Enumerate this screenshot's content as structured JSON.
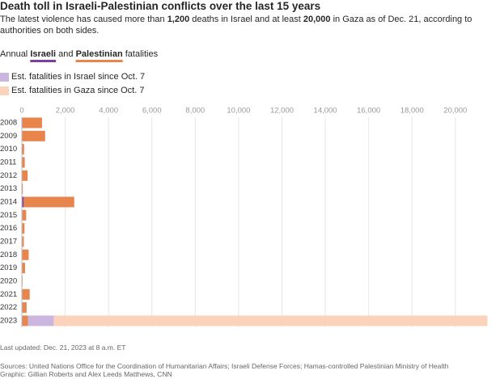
{
  "chart_data": {
    "type": "stacked-bar-horizontal",
    "title": "Death toll in Israeli-Palestinian conflicts over the last 15 years",
    "subtitle_parts": [
      "The latest violence has caused more than ",
      "1,200",
      " deaths in Israel and at least ",
      "20,000",
      " in Gaza as of Dec. 21, according to authorities on both sides."
    ],
    "legend_parts": [
      "Annual ",
      "Israeli",
      " and ",
      "Palestinian",
      " fatalities"
    ],
    "categories": [
      "2008",
      "2009",
      "2010",
      "2011",
      "2012",
      "2013",
      "2014",
      "2015",
      "2016",
      "2017",
      "2018",
      "2019",
      "2020",
      "2021",
      "2022",
      "2023"
    ],
    "series": [
      {
        "name": "Israeli",
        "color": "#7b3fa0",
        "values": [
          31,
          9,
          9,
          11,
          6,
          6,
          88,
          26,
          13,
          15,
          14,
          10,
          3,
          14,
          30,
          30
        ]
      },
      {
        "name": "Palestinian",
        "color": "#e8854c",
        "values": [
          899,
          1066,
          95,
          124,
          260,
          39,
          2329,
          174,
          109,
          77,
          300,
          138,
          30,
          349,
          191,
          250
        ]
      },
      {
        "name": "Est. fatalities in Israel since Oct. 7",
        "color": "#cbb6e0",
        "values": [
          null,
          null,
          null,
          null,
          null,
          null,
          null,
          null,
          null,
          null,
          null,
          null,
          null,
          null,
          null,
          1200
        ]
      },
      {
        "name": "Est. fatalities in Gaza since Oct. 7",
        "color": "#fbd3bb",
        "values": [
          null,
          null,
          null,
          null,
          null,
          null,
          null,
          null,
          null,
          null,
          null,
          null,
          null,
          null,
          null,
          20000
        ]
      }
    ],
    "xlim": [
      0,
      21500
    ],
    "xticks": [
      0,
      {
        "value": 2000,
        "label": "2,000"
      },
      {
        "value": 4000,
        "label": "4,000"
      },
      {
        "value": 6000,
        "label": "6,000"
      },
      {
        "value": 8000,
        "label": "8,000"
      },
      {
        "value": 10000,
        "label": "10,000"
      },
      {
        "value": 12000,
        "label": "12,000"
      },
      {
        "value": 14000,
        "label": "14,000"
      },
      {
        "value": 16000,
        "label": "16,000"
      },
      {
        "value": 18000,
        "label": "18,000"
      },
      {
        "value": 20000,
        "label": "20,000"
      }
    ],
    "grid": true,
    "updated": "Last updated: Dec. 21, 2023 at 8 a.m. ET",
    "sources": "Sources: United Nations Office for the Coordination of Humanitarian Affairs; Israeli Defense Forces; Hamas-controlled Palestinian Ministry of Health",
    "credit": "Graphic: Gillian Roberts and Alex Leeds Matthews, CNN"
  }
}
